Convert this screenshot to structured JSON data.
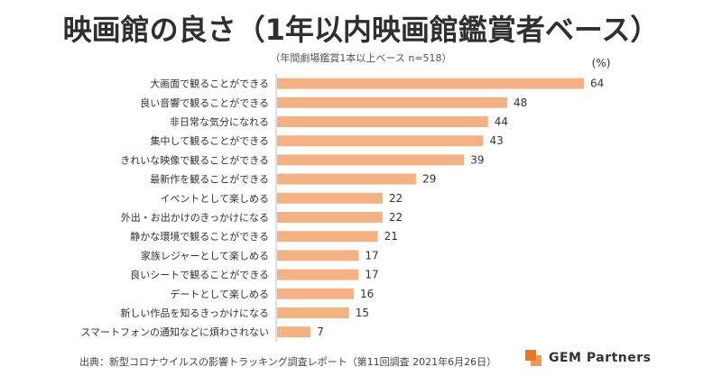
{
  "header": {
    "title": "映画館の良さ（1年以内映画館鑑賞者ベース）",
    "subtitle": "（年間劇場鑑賞1本以上ベース n=518）"
  },
  "chart_data": {
    "type": "bar",
    "orientation": "horizontal",
    "unit_label": "(%)",
    "categories": [
      "大画面で観ることができる",
      "良い音響で観ることができる",
      "非日常な気分になれる",
      "集中して観ることができる",
      "きれいな映像で観ることができる",
      "最新作を観ることができる",
      "イベントとして楽しめる",
      "外出・お出かけのきっかけになる",
      "静かな環境で観ることができる",
      "家族レジャーとして楽しめる",
      "良いシートで観ることができる",
      "デートとして楽しめる",
      "新しい作品を知るきっかけになる",
      "スマートフォンの通知などに煩わされない"
    ],
    "values": [
      64,
      48,
      44,
      43,
      39,
      29,
      22,
      22,
      21,
      17,
      17,
      16,
      15,
      7
    ],
    "xlim": [
      0,
      64
    ],
    "grid": false,
    "bar_color": "#f4b183"
  },
  "footer": {
    "source": "出典：新型コロナウイルスの影響トラッキング調査レポート（第11回調査 2021年6月26日）",
    "logo_text": "GEM Partners",
    "logo_color": "#e6762a"
  }
}
